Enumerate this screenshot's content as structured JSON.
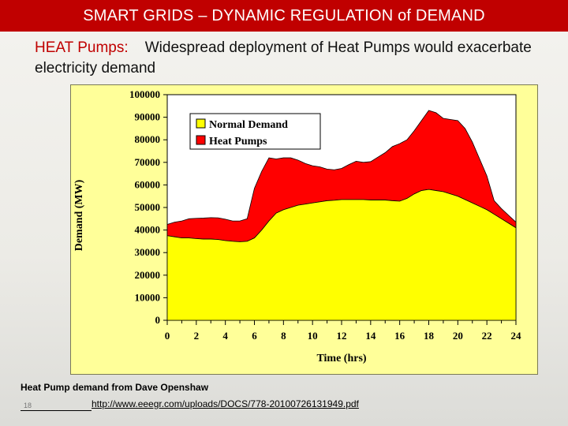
{
  "header": {
    "title": "SMART GRIDS – DYNAMIC REGULATION of DEMAND"
  },
  "subtitle": {
    "highlight": "HEAT Pumps:",
    "text": "Widespread deployment of Heat Pumps would exacerbate electricity demand"
  },
  "footer": {
    "source_text": "Heat Pump demand from  Dave Openshaw",
    "slide_number": "18",
    "link_text": "http://www.eeegr.com/uploads/DOCS/778-20100726131949.pdf"
  },
  "colors": {
    "title_bar": "#c00000",
    "normal_demand": "#ffff00",
    "heat_pumps": "#ff0000",
    "plot_bg": "#ffffff",
    "panel_bg": "#ffff99"
  },
  "chart_data": {
    "type": "area",
    "stacked": true,
    "xlabel": "Time (hrs)",
    "ylabel": "Demand (MW)",
    "xlim": [
      0,
      24
    ],
    "ylim": [
      0,
      100000
    ],
    "xticks": [
      "0",
      "2",
      "4",
      "6",
      "8",
      "10",
      "12",
      "14",
      "16",
      "18",
      "20",
      "22",
      "24"
    ],
    "yticks": [
      "0",
      "10000",
      "20000",
      "30000",
      "40000",
      "50000",
      "60000",
      "70000",
      "80000",
      "90000",
      "100000"
    ],
    "grid": false,
    "legend_position": "top-right",
    "x": [
      0,
      0.5,
      1,
      1.5,
      2,
      2.5,
      3,
      3.5,
      4,
      4.5,
      5,
      5.5,
      6,
      6.5,
      7,
      7.5,
      8,
      8.5,
      9,
      9.5,
      10,
      10.5,
      11,
      11.5,
      12,
      12.5,
      13,
      13.5,
      14,
      14.5,
      15,
      15.5,
      16,
      16.5,
      17,
      17.5,
      18,
      18.5,
      19,
      19.5,
      20,
      20.5,
      21,
      21.5,
      22,
      22.5,
      23,
      23.5,
      24
    ],
    "series": [
      {
        "name": "Normal Demand",
        "values": [
          37500,
          37000,
          36500,
          36500,
          36200,
          36000,
          36000,
          35800,
          35300,
          35000,
          34800,
          35000,
          36500,
          40000,
          44000,
          47500,
          49000,
          50000,
          51000,
          51500,
          52000,
          52500,
          53000,
          53200,
          53500,
          53500,
          53500,
          53500,
          53300,
          53300,
          53300,
          53000,
          52800,
          54000,
          56000,
          57500,
          58000,
          57500,
          57000,
          56000,
          55000,
          53500,
          52000,
          50500,
          49000,
          47000,
          45000,
          43000,
          41000
        ]
      },
      {
        "name": "Heat Pumps",
        "values": [
          5000,
          6500,
          7500,
          8500,
          9000,
          9300,
          9500,
          9600,
          9500,
          9000,
          9200,
          10000,
          22000,
          26000,
          28000,
          24000,
          23000,
          22000,
          20000,
          18000,
          16500,
          15500,
          14000,
          13500,
          13800,
          15500,
          17000,
          16500,
          17000,
          19000,
          21000,
          24000,
          25500,
          26000,
          28000,
          31000,
          35000,
          34500,
          32500,
          33000,
          33500,
          31500,
          27000,
          21000,
          15000,
          6000,
          4500,
          3500,
          2500
        ]
      }
    ]
  }
}
